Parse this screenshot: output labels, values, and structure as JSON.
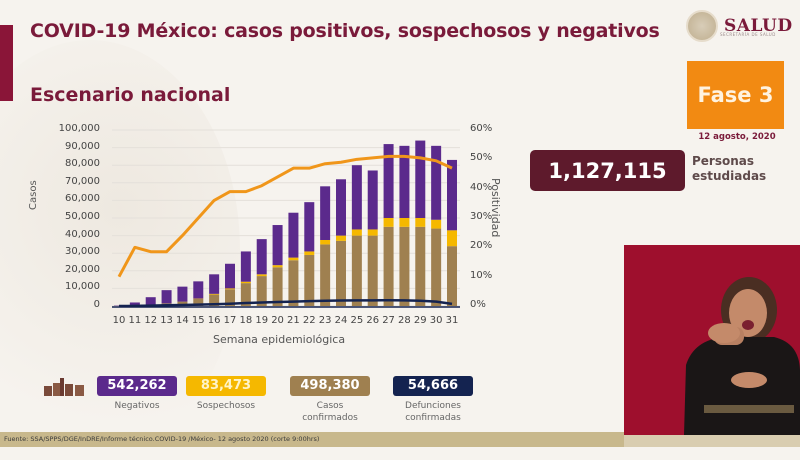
{
  "header": {
    "title": "COVID-19 México: casos positivos, sospechosos y negativos",
    "subtitle": "Escenario nacional",
    "logo_text": "SALUD",
    "logo_subtext": "SECRETARÍA DE SALUD"
  },
  "phase": {
    "label": "Fase 3",
    "date": "12 agosto, 2020",
    "color": "#f28a12"
  },
  "tested": {
    "value": "1,127,115",
    "label_line1": "Personas",
    "label_line2": "estudiadas"
  },
  "stats": [
    {
      "value": "542,262",
      "label": "Negativos",
      "color": "#5b2a8c",
      "text_color": "#ffffff"
    },
    {
      "value": "83,473",
      "label": "Sospechosos",
      "color": "#f5b800",
      "text_color": "#fff4c8"
    },
    {
      "value": "498,380",
      "label": "Casos confirmados",
      "color": "#9f8050",
      "text_color": "#ffffff"
    },
    {
      "value": "54,666",
      "label": "Defunciones confirmadas",
      "color": "#142350",
      "text_color": "#ffffff"
    }
  ],
  "footer": {
    "source": "Fuente: SSA/SPPS/DGE/InDRE/Informe técnico.COVID-19 /México- 12 agosto 2020 (corte 9:00hrs)"
  },
  "chart_data": {
    "type": "bar",
    "title": "COVID-19 México: casos positivos, sospechosos y negativos",
    "subtitle": "Escenario nacional",
    "xlabel": "Semana epidemiológica",
    "ylabel": "Casos",
    "y2label": "Positividad",
    "ylim": [
      0,
      100000
    ],
    "y2lim": [
      0,
      60
    ],
    "yticks": [
      "0",
      "10,000",
      "20,000",
      "30,000",
      "40,000",
      "50,000",
      "60,000",
      "70,000",
      "80,000",
      "90,000",
      "100,000"
    ],
    "y2ticks": [
      "0%",
      "10%",
      "20%",
      "30%",
      "40%",
      "50%",
      "60%"
    ],
    "grid": true,
    "stacked": true,
    "categories": [
      "10",
      "11",
      "12",
      "13",
      "14",
      "15",
      "16",
      "17",
      "18",
      "19",
      "20",
      "21",
      "22",
      "23",
      "24",
      "25",
      "26",
      "27",
      "28",
      "29",
      "30",
      "31"
    ],
    "series": [
      {
        "name": "Confirmados",
        "color": "#9f8050",
        "axis": "left",
        "values": [
          100,
          300,
          700,
          1500,
          2500,
          4000,
          6500,
          9500,
          13000,
          17000,
          22000,
          26000,
          29000,
          35000,
          37000,
          40000,
          40000,
          45000,
          45000,
          45000,
          44000,
          34000
        ]
      },
      {
        "name": "Sospechosos",
        "color": "#f5b800",
        "axis": "left",
        "values": [
          0,
          0,
          0,
          0,
          0,
          200,
          400,
          500,
          800,
          1000,
          1200,
          1500,
          2000,
          2500,
          3000,
          3500,
          3500,
          5000,
          5000,
          5000,
          5000,
          9000
        ]
      },
      {
        "name": "Negativos",
        "color": "#5b2a8c",
        "axis": "left",
        "values": [
          200,
          1700,
          4300,
          7500,
          8500,
          9800,
          11100,
          14000,
          17200,
          20000,
          22800,
          25500,
          28000,
          30500,
          32000,
          36500,
          33500,
          42000,
          41000,
          44000,
          42000,
          40000
        ]
      },
      {
        "name": "Positividad",
        "type": "line",
        "color": "#f0961a",
        "axis": "right",
        "values": [
          10,
          20,
          18.5,
          18.5,
          24,
          30,
          36,
          39,
          39,
          41,
          44,
          47,
          47,
          48.5,
          49,
          50,
          50.5,
          51,
          51,
          50.5,
          49.5,
          47
        ]
      },
      {
        "name": "Defunciones",
        "type": "line",
        "color": "#142350",
        "axis": "left",
        "values": [
          0,
          50,
          200,
          400,
          600,
          800,
          1000,
          1300,
          1700,
          2000,
          2300,
          2500,
          2800,
          3000,
          3100,
          3200,
          3200,
          3300,
          3200,
          3000,
          2500,
          1200
        ]
      }
    ],
    "legend": [
      "Negativos",
      "Sospechosos",
      "Casos confirmados",
      "Defunciones confirmadas"
    ]
  }
}
